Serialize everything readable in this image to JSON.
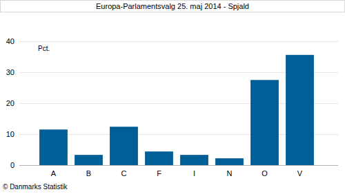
{
  "chart_data": {
    "type": "bar",
    "title": "Europa-Parlamentsvalg 25. maj 2014 - Spjald",
    "y_label": "Pct.",
    "source": "© Danmarks Statistik",
    "categories": [
      "A",
      "B",
      "C",
      "F",
      "I",
      "N",
      "O",
      "V"
    ],
    "values": [
      11.5,
      3.3,
      12.4,
      4.4,
      3.3,
      2.2,
      27.5,
      35.6
    ],
    "color": "#005f96",
    "ylim": [
      0,
      40
    ],
    "yticks": [
      0,
      10,
      20,
      30,
      40
    ],
    "grid": true
  }
}
